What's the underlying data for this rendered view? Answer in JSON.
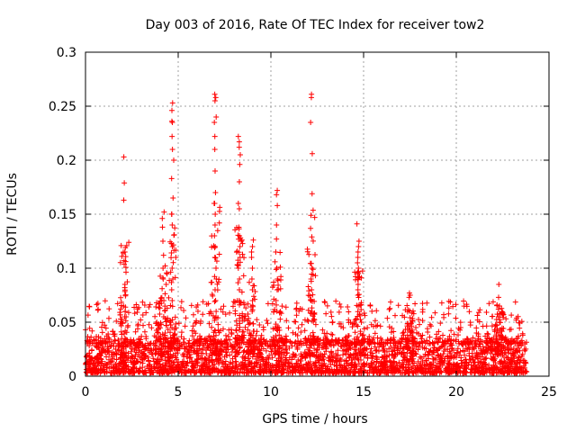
{
  "chart_data": {
    "type": "scatter",
    "title": "Day 003 of 2016, Rate Of TEC Index for receiver tow2",
    "xlabel": "GPS time / hours",
    "ylabel": "ROTI / TECUs",
    "xlim": [
      0,
      25
    ],
    "ylim": [
      0,
      0.3
    ],
    "xticks": [
      "0",
      "5",
      "10",
      "15",
      "20",
      "25"
    ],
    "yticks": [
      "0",
      "0.05",
      "0.1",
      "0.15",
      "0.2",
      "0.25",
      "0.3"
    ],
    "grid": true,
    "marker": "+",
    "series_color": "#ff0000",
    "clusters": [
      {
        "x": 2.1,
        "values": [
          0.203,
          0.179,
          0.163,
          0.107,
          0.085,
          0.082,
          0.064,
          0.06,
          0.042,
          0.035
        ]
      },
      {
        "x": 4.2,
        "values": [
          0.152,
          0.146,
          0.138,
          0.125,
          0.112,
          0.1,
          0.09,
          0.07,
          0.055
        ]
      },
      {
        "x": 4.7,
        "values": [
          0.253,
          0.246,
          0.236,
          0.235,
          0.222,
          0.21,
          0.2,
          0.183,
          0.165,
          0.15,
          0.14,
          0.12,
          0.1,
          0.09,
          0.08,
          0.07
        ]
      },
      {
        "x": 7.0,
        "values": [
          0.261,
          0.258,
          0.255,
          0.24,
          0.235,
          0.222,
          0.21,
          0.19,
          0.17,
          0.16,
          0.15,
          0.14,
          0.13,
          0.12,
          0.11,
          0.1,
          0.09,
          0.08,
          0.07,
          0.06
        ]
      },
      {
        "x": 8.3,
        "values": [
          0.222,
          0.217,
          0.212,
          0.205,
          0.196,
          0.18,
          0.16,
          0.155,
          0.13,
          0.12,
          0.11,
          0.1,
          0.09,
          0.08,
          0.07
        ]
      },
      {
        "x": 9.0,
        "values": [
          0.126,
          0.12,
          0.115,
          0.11,
          0.1,
          0.09,
          0.08,
          0.07,
          0.06
        ]
      },
      {
        "x": 10.3,
        "values": [
          0.172,
          0.168,
          0.158,
          0.14,
          0.127,
          0.115,
          0.1,
          0.09,
          0.08,
          0.07
        ]
      },
      {
        "x": 12.2,
        "values": [
          0.261,
          0.258,
          0.235,
          0.206,
          0.169,
          0.129,
          0.1,
          0.09,
          0.08,
          0.07,
          0.06
        ]
      },
      {
        "x": 14.7,
        "values": [
          0.141,
          0.125,
          0.12,
          0.115,
          0.11,
          0.105,
          0.1,
          0.095,
          0.09,
          0.085,
          0.08,
          0.075
        ]
      },
      {
        "x": 17.5,
        "values": [
          0.077,
          0.075,
          0.073
        ]
      },
      {
        "x": 22.3,
        "values": [
          0.085,
          0.073,
          0.065,
          0.062,
          0.058,
          0.055,
          0.05
        ]
      }
    ],
    "baseline": {
      "x_range": [
        0,
        23.8
      ],
      "typical_max": 0.035,
      "typical_min": 0.003
    }
  }
}
